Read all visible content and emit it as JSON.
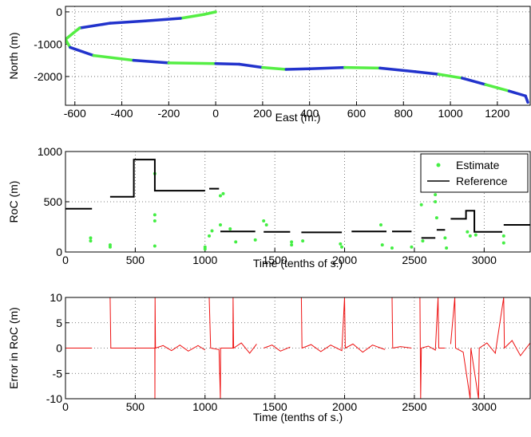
{
  "chart_data": [
    {
      "type": "line",
      "x_label": "East (m.)",
      "y_label": "North (m)",
      "xlim": [
        -640,
        1340
      ],
      "ylim": [
        -2890,
        170
      ],
      "xticks": [
        -600,
        -400,
        -200,
        0,
        200,
        400,
        600,
        800,
        1000,
        1200
      ],
      "yticks": [
        -2000,
        -1000,
        0
      ],
      "grid": true,
      "series": [
        {
          "x": [
            0,
            -50,
            -150,
            -300,
            -450,
            -580,
            -640,
            -620,
            -520,
            -350,
            -200,
            0,
            100,
            200,
            300,
            400,
            550,
            700,
            850,
            950,
            1050,
            1150,
            1250,
            1320,
            1330
          ],
          "y": [
            0,
            -80,
            -200,
            -280,
            -350,
            -500,
            -850,
            -1100,
            -1350,
            -1500,
            -1580,
            -1600,
            -1620,
            -1720,
            -1780,
            -1760,
            -1720,
            -1740,
            -1850,
            -1930,
            -2050,
            -2250,
            -2450,
            -2600,
            -2800
          ],
          "segment_colors": [
            "#55ee44",
            "#55ee44",
            "#2233cc",
            "#2233cc",
            "#2233cc",
            "#55ee44",
            "#55ee44",
            "#2233cc",
            "#55ee44",
            "#2233cc",
            "#55ee44",
            "#2233cc",
            "#2233cc",
            "#55ee44",
            "#2233cc",
            "#2233cc",
            "#55ee44",
            "#2233cc",
            "#2233cc",
            "#55ee44",
            "#2233cc",
            "#55ee44",
            "#2233cc",
            "#2233cc"
          ]
        }
      ]
    },
    {
      "type": "line",
      "x_label": "Time (tenths of s.)",
      "y_label": "RoC (m)",
      "xlim": [
        0,
        3330
      ],
      "ylim": [
        0,
        1000
      ],
      "xticks": [
        0,
        500,
        1000,
        1500,
        2000,
        2500,
        3000
      ],
      "yticks": [
        0,
        500,
        1000
      ],
      "grid": true,
      "legend": "upper right",
      "series": [
        {
          "name": "Estimate",
          "mode": "markers",
          "color": "#44ee44",
          "x": [
            180,
            180,
            320,
            320,
            640,
            640,
            640,
            640,
            1000,
            1000,
            1030,
            1050,
            1110,
            1110,
            1130,
            1180,
            1220,
            1360,
            1420,
            1440,
            1620,
            1620,
            1700,
            1970,
            1980,
            2260,
            2270,
            2340,
            2480,
            2550,
            2560,
            2650,
            2650,
            2660,
            2720,
            2730,
            2880,
            2900,
            2940,
            3140,
            3140
          ],
          "y": [
            140,
            110,
            70,
            50,
            370,
            310,
            60,
            780,
            50,
            30,
            160,
            210,
            560,
            270,
            580,
            230,
            100,
            120,
            310,
            270,
            100,
            70,
            110,
            80,
            50,
            270,
            70,
            40,
            50,
            470,
            110,
            570,
            500,
            340,
            140,
            40,
            200,
            160,
            170,
            90,
            160
          ]
        },
        {
          "name": "Reference",
          "mode": "line",
          "color": "#000000",
          "x": [
            0,
            190,
            null,
            320,
            490,
            490,
            640,
            640,
            1000,
            null,
            1030,
            1100,
            null,
            1110,
            1360,
            null,
            1420,
            1610,
            null,
            1690,
            1980,
            null,
            2050,
            2300,
            null,
            2340,
            2480,
            null,
            2550,
            2650,
            null,
            2660,
            2720,
            null,
            2760,
            2870,
            2870,
            2930,
            2930,
            3130,
            null,
            3140,
            3330
          ],
          "y": [
            430,
            430,
            null,
            550,
            550,
            920,
            920,
            610,
            610,
            null,
            630,
            630,
            null,
            205,
            205,
            null,
            200,
            200,
            null,
            195,
            195,
            null,
            205,
            205,
            null,
            205,
            205,
            null,
            140,
            140,
            null,
            220,
            220,
            null,
            330,
            330,
            410,
            410,
            200,
            200,
            null,
            270,
            270
          ]
        }
      ]
    },
    {
      "type": "line",
      "x_label": "Time (tenths of s.)",
      "y_label": "Error in RoC (m)",
      "xlim": [
        0,
        3330
      ],
      "ylim": [
        -10,
        10
      ],
      "xticks": [
        0,
        500,
        1000,
        1500,
        2000,
        2500,
        3000
      ],
      "yticks": [
        -10,
        -5,
        0,
        5,
        10
      ],
      "grid": true,
      "series": [
        {
          "mode": "line",
          "color": "#ee1111",
          "x": [
            0,
            190,
            null,
            320,
            325,
            640,
            641,
            642,
            645,
            700,
            760,
            820,
            880,
            950,
            1000,
            null,
            1030,
            1040,
            1100,
            1110,
            1112,
            1200,
            1201,
            1205,
            1260,
            1320,
            1370,
            null,
            1420,
            1480,
            1540,
            1610,
            null,
            1690,
            1695,
            1760,
            1830,
            1900,
            1980,
            2000,
            2005,
            2060,
            2130,
            2200,
            2290,
            null,
            2340,
            2345,
            2400,
            2480,
            null,
            2540,
            2545,
            2550,
            2600,
            2650,
            2670,
            2675,
            2720,
            null,
            2760,
            2790,
            2795,
            2850,
            2900,
            2905,
            2960,
            2965,
            3020,
            3080,
            3140,
            3145,
            3200,
            3260,
            3330
          ],
          "y": [
            0,
            0,
            null,
            10,
            0,
            0,
            -10,
            10,
            0,
            0.5,
            -0.5,
            0.6,
            -0.6,
            0.5,
            -0.4,
            null,
            10,
            0,
            -0.3,
            -10,
            0,
            0,
            10,
            0,
            1,
            -1,
            0.8,
            null,
            0,
            0.6,
            -0.6,
            0.2,
            null,
            10,
            0,
            0.7,
            -0.7,
            0.6,
            -0.5,
            10,
            0,
            0.8,
            -0.8,
            0.6,
            -0.3,
            null,
            10,
            0,
            0.3,
            0,
            null,
            10,
            -10,
            0,
            0.4,
            -0.4,
            10,
            0,
            0,
            null,
            0.8,
            10,
            0,
            -0.8,
            -10,
            0,
            -10,
            0,
            1,
            -1,
            10,
            0,
            1.5,
            -1.5,
            1
          ]
        }
      ]
    }
  ]
}
